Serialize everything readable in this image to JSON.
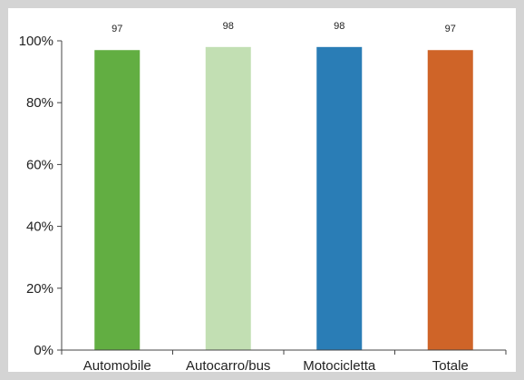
{
  "chart_data": {
    "type": "bar",
    "categories": [
      "Automobile",
      "Autocarro/bus",
      "Motocicletta",
      "Totale"
    ],
    "values": [
      97,
      98,
      98,
      97
    ],
    "data_labels": [
      "97",
      "98",
      "98",
      "97"
    ],
    "colors": [
      "#62ae42",
      "#c2dfb3",
      "#2a7db6",
      "#cf6428"
    ],
    "ylim": [
      0,
      100
    ],
    "yticks": [
      0,
      20,
      40,
      60,
      80,
      100
    ],
    "ytick_labels": [
      "0%",
      "20%",
      "40%",
      "60%",
      "80%",
      "100%"
    ],
    "grid": false,
    "legend": "none",
    "title": "",
    "xlabel": "",
    "ylabel": ""
  }
}
